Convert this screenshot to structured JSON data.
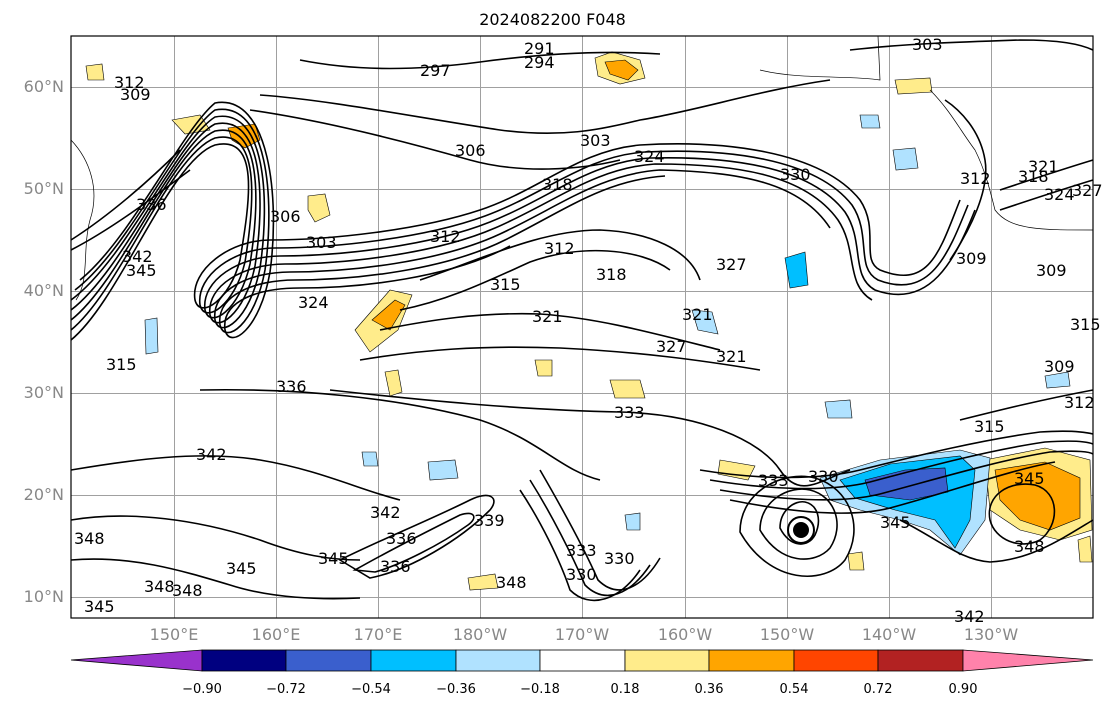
{
  "title": "2024082200 F048",
  "map": {
    "lat_range": [
      8,
      65
    ],
    "lon_range_east": [
      140,
      240
    ],
    "lat_labels": [
      "10°N",
      "20°N",
      "30°N",
      "40°N",
      "50°N",
      "60°N"
    ],
    "lat_values": [
      10,
      20,
      30,
      40,
      50,
      60
    ],
    "lon_labels": [
      "150°E",
      "160°E",
      "170°E",
      "180°W",
      "170°W",
      "160°W",
      "150°W",
      "140°W",
      "130°W"
    ],
    "lon_values": [
      150,
      160,
      170,
      180,
      190,
      200,
      210,
      220,
      230
    ],
    "contour_labels": [
      "291",
      "294",
      "297",
      "303",
      "312",
      "309",
      "306",
      "303",
      "336",
      "345",
      "342",
      "306",
      "303",
      "324",
      "312",
      "315",
      "318",
      "312",
      "318",
      "321",
      "324",
      "327",
      "330",
      "321",
      "327",
      "321",
      "336",
      "333",
      "342",
      "348",
      "345",
      "348",
      "348",
      "345",
      "345",
      "336",
      "342",
      "336",
      "339",
      "333",
      "330",
      "330",
      "348",
      "333",
      "330",
      "345",
      "345",
      "348",
      "309",
      "309",
      "309",
      "312",
      "315",
      "318",
      "321",
      "324",
      "327",
      "315",
      "312",
      "315",
      "342"
    ],
    "filled_colors": {
      "dark_purple": "#9932cc",
      "navy": "#000080",
      "blue": "#3a5fcd",
      "deep_sky": "#00bfff",
      "light_sky": "#b0e2ff",
      "white": "#ffffff",
      "yellow": "#ffec8b",
      "orange": "#ffa500",
      "orange_red": "#ff4500",
      "firebrick": "#b22222",
      "pink": "#ff82ab"
    }
  },
  "colorbar": {
    "ticks": [
      "−0.90",
      "−0.72",
      "−0.54",
      "−0.36",
      "−0.18",
      "0.18",
      "0.36",
      "0.54",
      "0.72",
      "0.90"
    ],
    "colors": [
      "#9932cc",
      "#000080",
      "#3a5fcd",
      "#00bfff",
      "#b0e2ff",
      "#ffffff",
      "#ffec8b",
      "#ffa500",
      "#ff4500",
      "#b22222",
      "#ff82ab"
    ]
  }
}
